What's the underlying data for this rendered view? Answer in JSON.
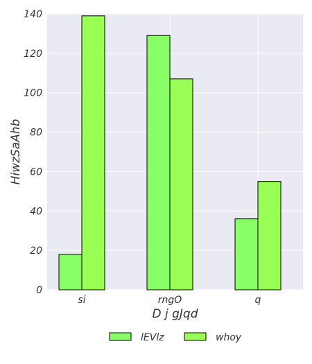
{
  "chart_data": {
    "type": "bar",
    "categories": [
      "si",
      "rngO",
      "q"
    ],
    "series": [
      {
        "name": "lEVlz",
        "values": [
          18,
          129,
          36
        ],
        "color": "#88ff66"
      },
      {
        "name": "whoy",
        "values": [
          139,
          107,
          55
        ],
        "color": "#99ff55"
      }
    ],
    "xlabel": "D j gJqd",
    "ylabel": "HiwzSaAhb",
    "ylim": [
      0,
      140
    ],
    "yticks": [
      0,
      20,
      40,
      60,
      80,
      100,
      120,
      140
    ],
    "grid": true,
    "legend_position": "bottom-center",
    "plot_background": "#eaeaf2",
    "grid_color": "#ffffff"
  }
}
